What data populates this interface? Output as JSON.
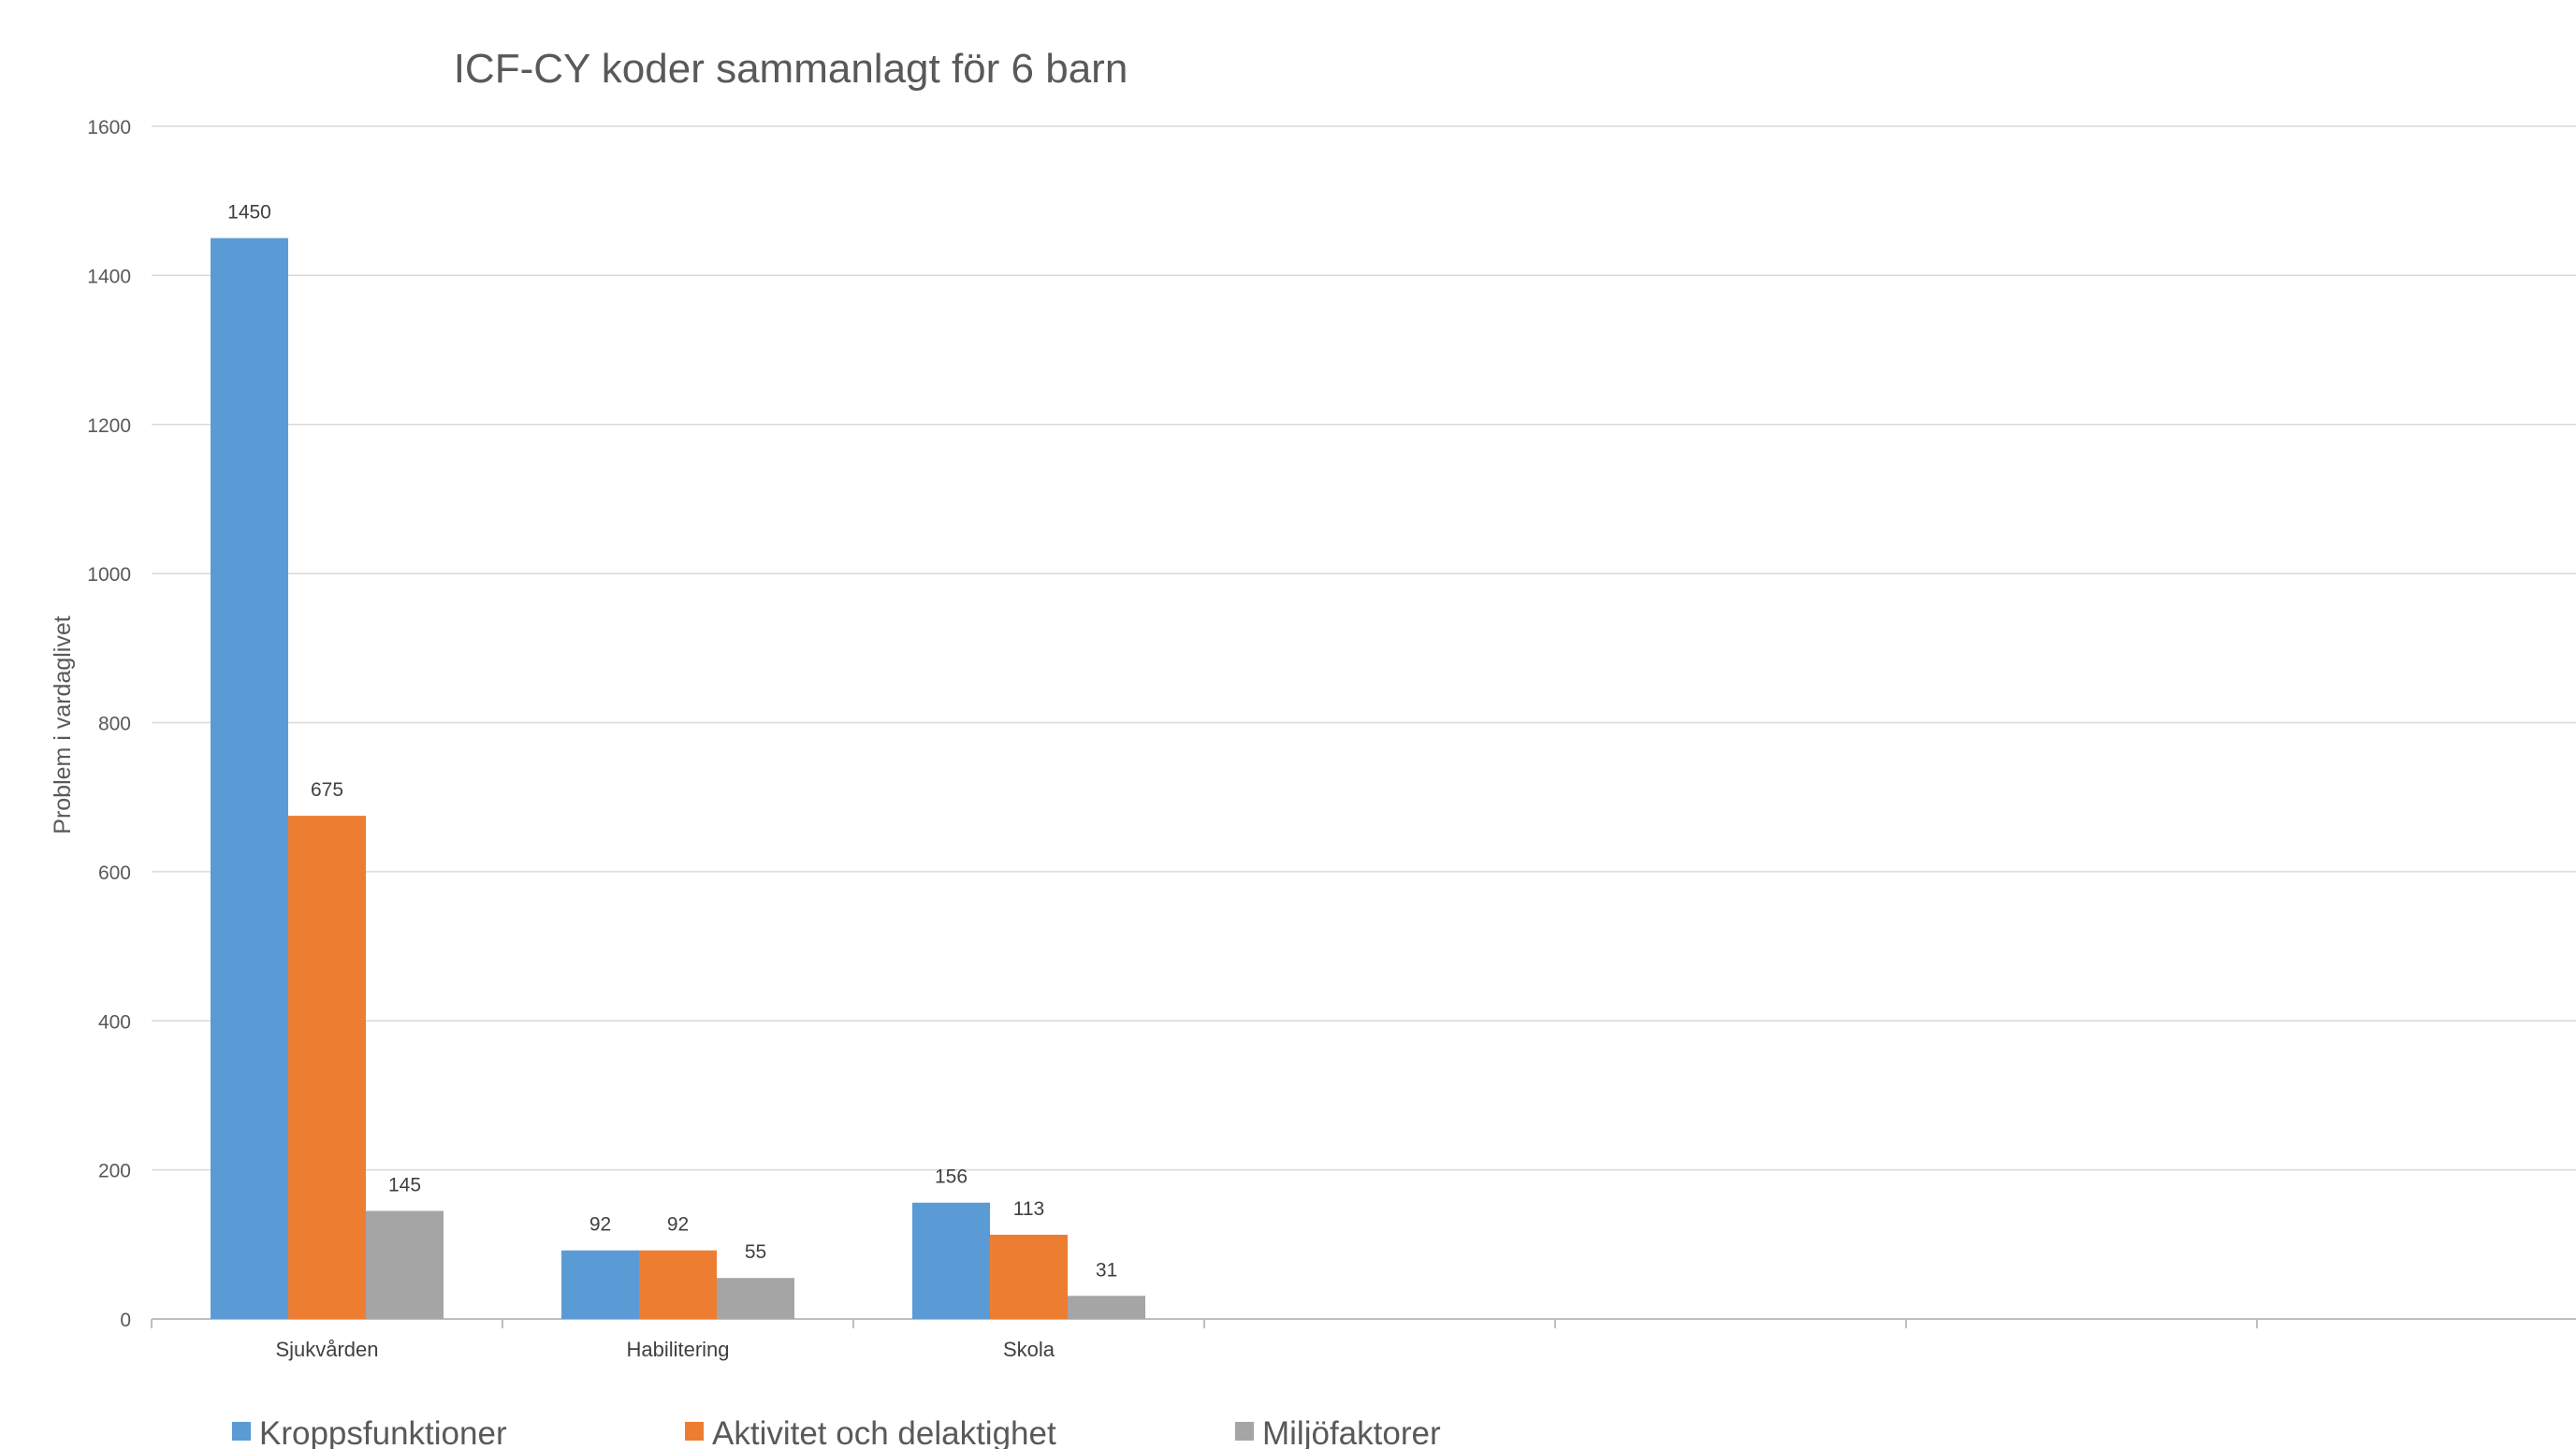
{
  "chart_data": {
    "type": "bar",
    "title": "ICF-CY koder sammanlagt för 6 barn",
    "xlabel": "",
    "ylabel": "Problem i vardaglivet",
    "ylim": [
      0,
      1600
    ],
    "yticks": [
      0,
      200,
      400,
      600,
      800,
      1000,
      1200,
      1400,
      1600
    ],
    "grid": true,
    "legend_position": "bottom",
    "category_slots": 7,
    "categories": [
      "Sjukvården",
      "Habilitering",
      "Skola"
    ],
    "series": [
      {
        "name": "Kroppsfunktioner",
        "color": "#5B9BD5",
        "values": [
          1450,
          92,
          156
        ]
      },
      {
        "name": "Aktivitet och delaktighet",
        "color": "#ED7D31",
        "values": [
          675,
          92,
          113
        ]
      },
      {
        "name": "Miljöfaktorer",
        "color": "#A5A5A5",
        "values": [
          145,
          55,
          31
        ]
      }
    ]
  }
}
